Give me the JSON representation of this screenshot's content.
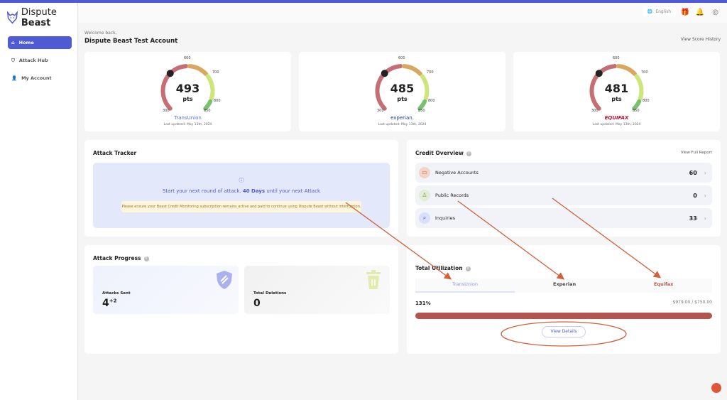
{
  "brand": {
    "name_light": "Dispute",
    "name_bold": "Beast"
  },
  "sidebar": {
    "items": [
      {
        "label": "Home",
        "icon": "home-icon",
        "active": true
      },
      {
        "label": "Attack Hub",
        "icon": "shield-icon"
      },
      {
        "label": "My Account",
        "icon": "user-icon"
      }
    ]
  },
  "header": {
    "language": "English"
  },
  "welcome": "Welcome back,",
  "account_name": "Dispute Beast Test Account",
  "view_score_history": "View Score History",
  "scores": [
    {
      "score": "493",
      "unit": "pts",
      "bureau": "TransUnion",
      "bureau_color": "#5b6fd6",
      "updated": "Last updated: May 13th, 2024"
    },
    {
      "score": "485",
      "unit": "pts",
      "bureau": "experian.",
      "bureau_color": "#1d3a8a",
      "updated": "Last updated: May 13th, 2024"
    },
    {
      "score": "481",
      "unit": "pts",
      "bureau": "EQUIFAX",
      "bureau_color": "#c8102e",
      "updated": "Last updated: May 13th, 2024"
    }
  ],
  "gauge_ticks": [
    "300",
    "600",
    "700",
    "800",
    "850"
  ],
  "gauge_colors": {
    "poor": "#c46f74",
    "fair": "#d9a75e",
    "good": "#cde57a",
    "excellent": "#7cbf6e"
  },
  "attack_tracker": {
    "title": "Attack Tracker",
    "msg_prefix": "Start your next round of attack.",
    "msg_days": "40 Days",
    "msg_suffix": "until your next Attack",
    "warning": "Please ensure your Beast Credit Monitoring subscription remains active and paid to continue using Dispute Beast without interruption."
  },
  "credit_overview": {
    "title": "Credit Overview",
    "link": "View Full Report",
    "rows": [
      {
        "label": "Negative Accounts",
        "value": "60"
      },
      {
        "label": "Public Records",
        "value": "0"
      },
      {
        "label": "Inquiries",
        "value": "33"
      }
    ]
  },
  "attack_progress": {
    "title": "Attack Progress",
    "sent_label": "Attacks Sent",
    "sent_value": "4",
    "sent_delta": "+2",
    "deletions_label": "Total Deletions",
    "deletions_value": "0"
  },
  "utilization": {
    "title": "Total Utilization",
    "tabs": [
      "TransUnion",
      "Experian",
      "Equifax"
    ],
    "active_tab": "TransUnion",
    "percent": "131%",
    "amount": "$979.00 / $750.00",
    "fill_percent": 100,
    "button": "View Details"
  }
}
